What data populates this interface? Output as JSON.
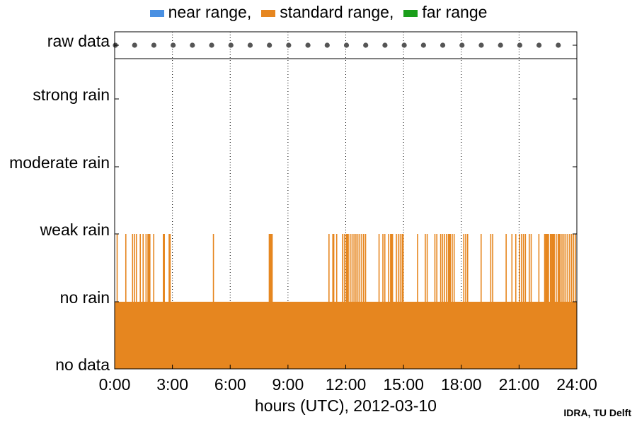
{
  "chart_data": {
    "type": "bar",
    "xlabel": "hours (UTC), 2012-03-10",
    "x_ticks": [
      "0:00",
      "3:00",
      "6:00",
      "9:00",
      "12:00",
      "15:00",
      "18:00",
      "21:00",
      "24:00"
    ],
    "xlim": [
      0,
      24
    ],
    "grid": "vertical dotted",
    "categories": [
      "no data",
      "no rain",
      "weak rain",
      "moderate rain",
      "strong rain"
    ],
    "raw_data_label": "raw data",
    "raw_data_hours": [
      0,
      1,
      2,
      3,
      4,
      5,
      6,
      7,
      8,
      9,
      10,
      11,
      12,
      13,
      14,
      15,
      16,
      17,
      18,
      19,
      20,
      21,
      22,
      23
    ],
    "series": [
      {
        "name": "near range",
        "color": "#4a90e2",
        "baseline": "no data",
        "weak_rain_hours": []
      },
      {
        "name": "standard range",
        "color": "#e6861f",
        "baseline": "no rain",
        "weak_rain_hours": [
          0.1,
          0.55,
          0.9,
          1.0,
          1.1,
          1.3,
          1.45,
          1.6,
          1.7,
          1.75,
          1.8,
          2.0,
          2.5,
          2.55,
          2.8,
          2.85,
          5.1,
          8.0,
          8.05,
          8.1,
          8.15,
          11.1,
          11.3,
          11.35,
          11.5,
          11.8,
          11.9,
          12.0,
          12.05,
          12.1,
          12.2,
          12.3,
          12.4,
          12.5,
          12.6,
          12.7,
          12.8,
          12.9,
          13.0,
          13.7,
          13.9,
          14.0,
          14.2,
          14.3,
          14.35,
          14.4,
          14.6,
          14.7,
          14.8,
          14.9,
          14.95,
          15.7,
          16.1,
          16.2,
          16.6,
          16.7,
          16.9,
          17.0,
          17.1,
          17.2,
          17.3,
          17.35,
          17.4,
          17.5,
          17.6,
          18.1,
          18.2,
          18.3,
          19.0,
          19.5,
          19.6,
          20.3,
          20.6,
          20.8,
          21.0,
          21.1,
          21.2,
          21.3,
          21.5,
          21.6,
          22.0,
          22.3,
          22.35,
          22.4,
          22.45,
          22.5,
          22.6,
          22.65,
          22.7,
          22.75,
          22.8,
          22.9,
          23.0,
          23.05,
          23.1,
          23.2,
          23.3,
          23.4,
          23.5,
          23.6,
          23.7,
          23.8,
          23.9
        ]
      },
      {
        "name": "far range",
        "color": "#1a9e1a",
        "baseline": "no data",
        "weak_rain_hours": []
      }
    ],
    "legend_position": "top",
    "raw_data_color": "#555555"
  },
  "legend": {
    "items": [
      {
        "label": "near range,",
        "color": "#4a90e2"
      },
      {
        "label": "standard range,",
        "color": "#e6861f"
      },
      {
        "label": "far range",
        "color": "#1a9e1a"
      }
    ]
  },
  "credit": "IDRA, TU Delft"
}
